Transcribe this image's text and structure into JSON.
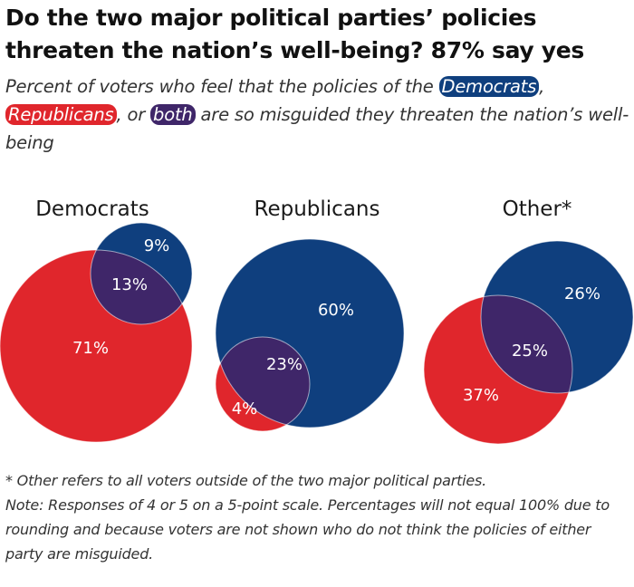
{
  "title_line1": "Do the two major political parties’ policies",
  "title_line2": "threaten the nation’s well-being? 87% say yes",
  "subtitle": {
    "part1": "Percent of voters who feel that the policies of the ",
    "democrats": "Democrats",
    "comma": ", ",
    "republicans": "Republicans",
    "part2": ", or ",
    "both": "both",
    "part3": " are so misguided they threaten the nation’s well-being"
  },
  "colors": {
    "democrats": "#0f3f7e",
    "republicans": "#e0262c",
    "both": "#3f2669"
  },
  "chart_data": [
    {
      "type": "venn",
      "group": "Democrats",
      "democrats_only": 9,
      "republicans_only": 71,
      "both": 13,
      "labels": {
        "dem": "9%",
        "rep": "71%",
        "both": "13%"
      }
    },
    {
      "type": "venn",
      "group": "Republicans",
      "democrats_only": 60,
      "republicans_only": 4,
      "both": 23,
      "labels": {
        "dem": "60%",
        "rep": "4%",
        "both": "23%"
      }
    },
    {
      "type": "venn",
      "group": "Other*",
      "democrats_only": 26,
      "republicans_only": 37,
      "both": 25,
      "labels": {
        "dem": "26%",
        "rep": "37%",
        "both": "25%"
      }
    }
  ],
  "footnote_line1": "* Other refers to all voters outside of the two major political parties.",
  "footnote_line2": "Note: Responses of 4 or 5 on a 5-point scale. Percentages will not equal 100% due to rounding and because voters are not shown who do not think the policies of either party are misguided."
}
